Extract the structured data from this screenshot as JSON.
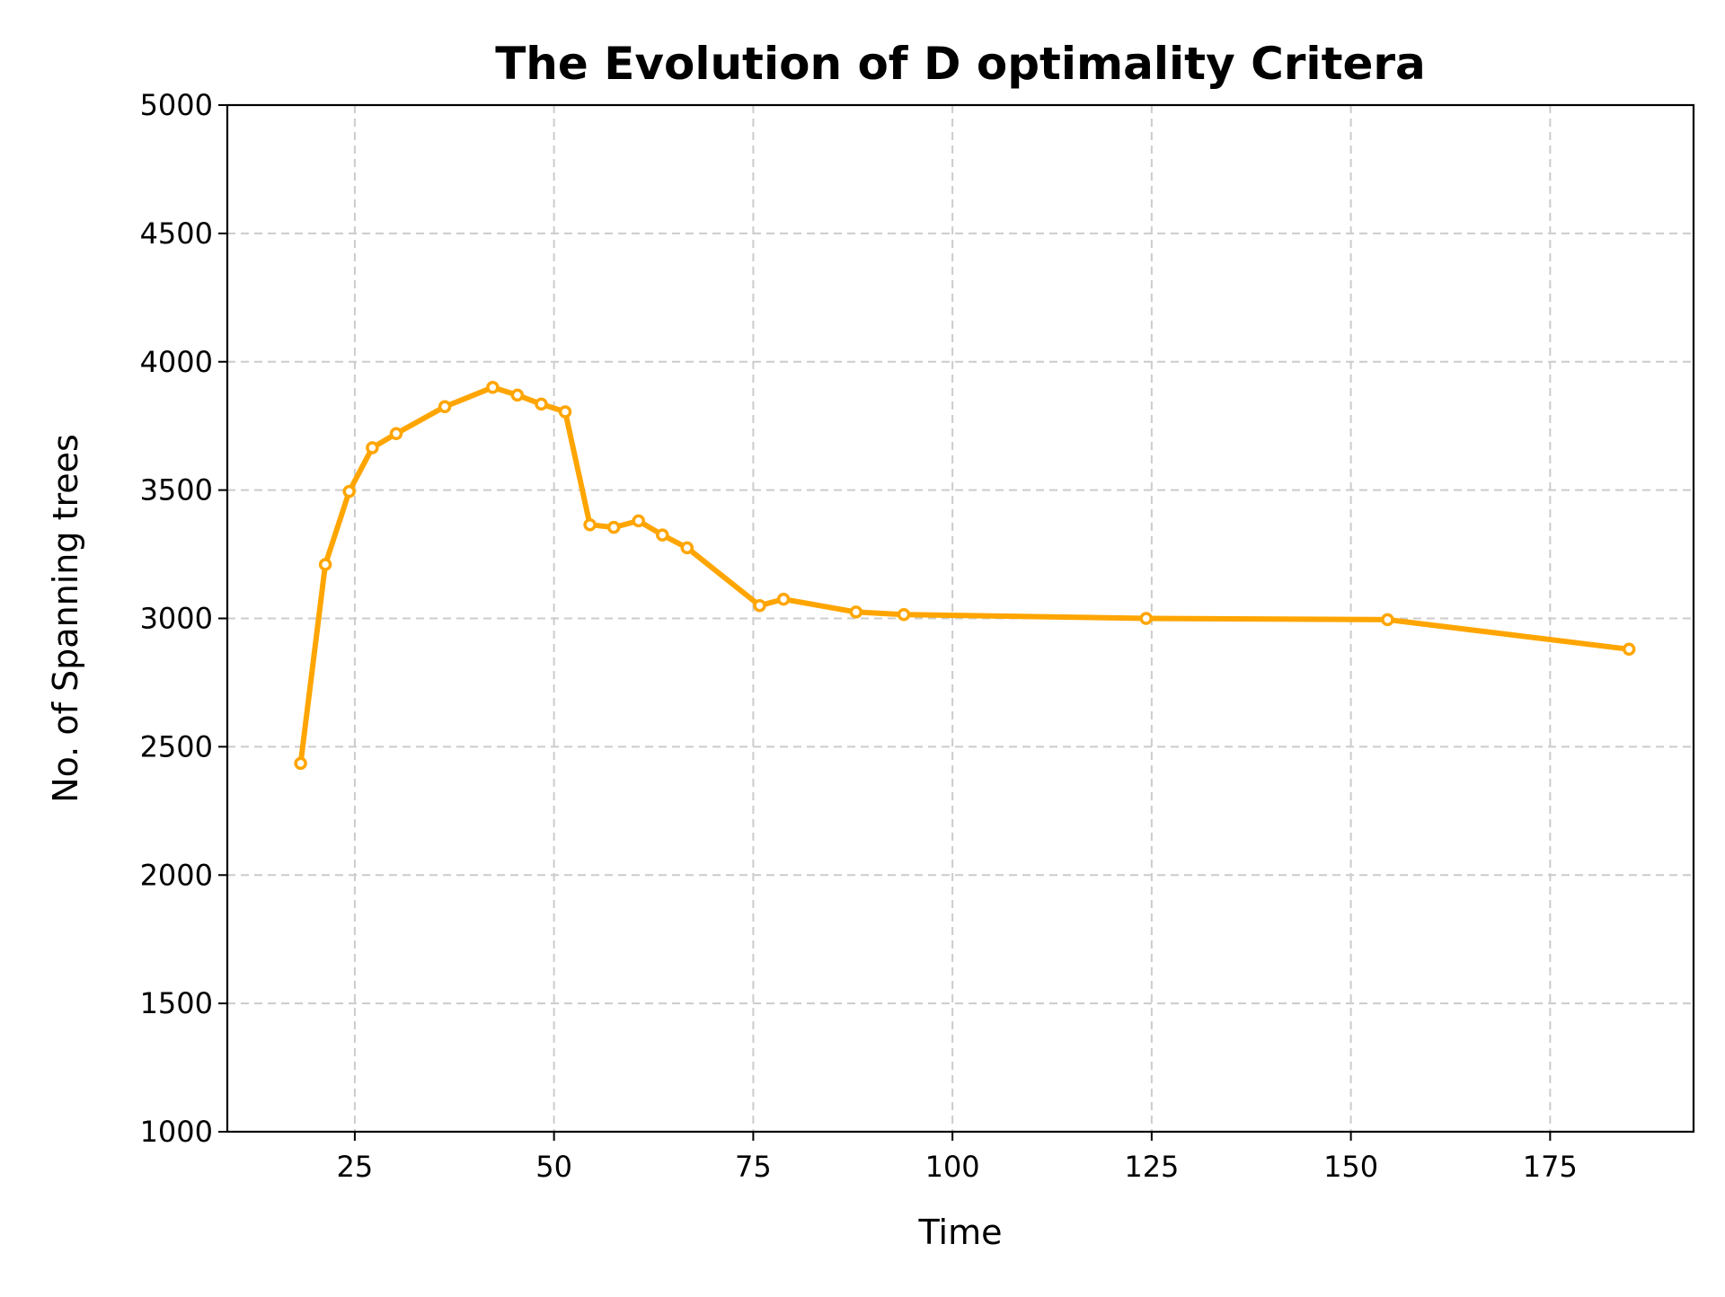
{
  "chart_data": {
    "type": "line",
    "title": "The Evolution of D optimality Critera",
    "xlabel": "Time",
    "ylabel": "No. of Spanning trees",
    "xlim": [
      9,
      193
    ],
    "ylim": [
      1000,
      5000
    ],
    "xticks": [
      25,
      50,
      75,
      100,
      125,
      150,
      175
    ],
    "yticks": [
      1000,
      1500,
      2000,
      2500,
      3000,
      3500,
      4000,
      4500,
      5000
    ],
    "grid": true,
    "legend": "none",
    "series": [
      {
        "color": "#ffa500",
        "marker_fill": "#ffffff",
        "x": [
          18.2,
          21.3,
          24.3,
          27.2,
          30.2,
          36.3,
          42.3,
          45.4,
          48.4,
          51.4,
          54.5,
          57.5,
          60.6,
          63.6,
          66.7,
          75.8,
          78.8,
          87.9,
          93.9,
          124.3,
          154.6,
          184.9
        ],
        "y": [
          2435,
          3210,
          3495,
          3665,
          3720,
          3825,
          3900,
          3870,
          3835,
          3805,
          3365,
          3355,
          3380,
          3325,
          3275,
          3050,
          3075,
          3025,
          3015,
          3000,
          2995,
          2880
        ]
      }
    ]
  }
}
